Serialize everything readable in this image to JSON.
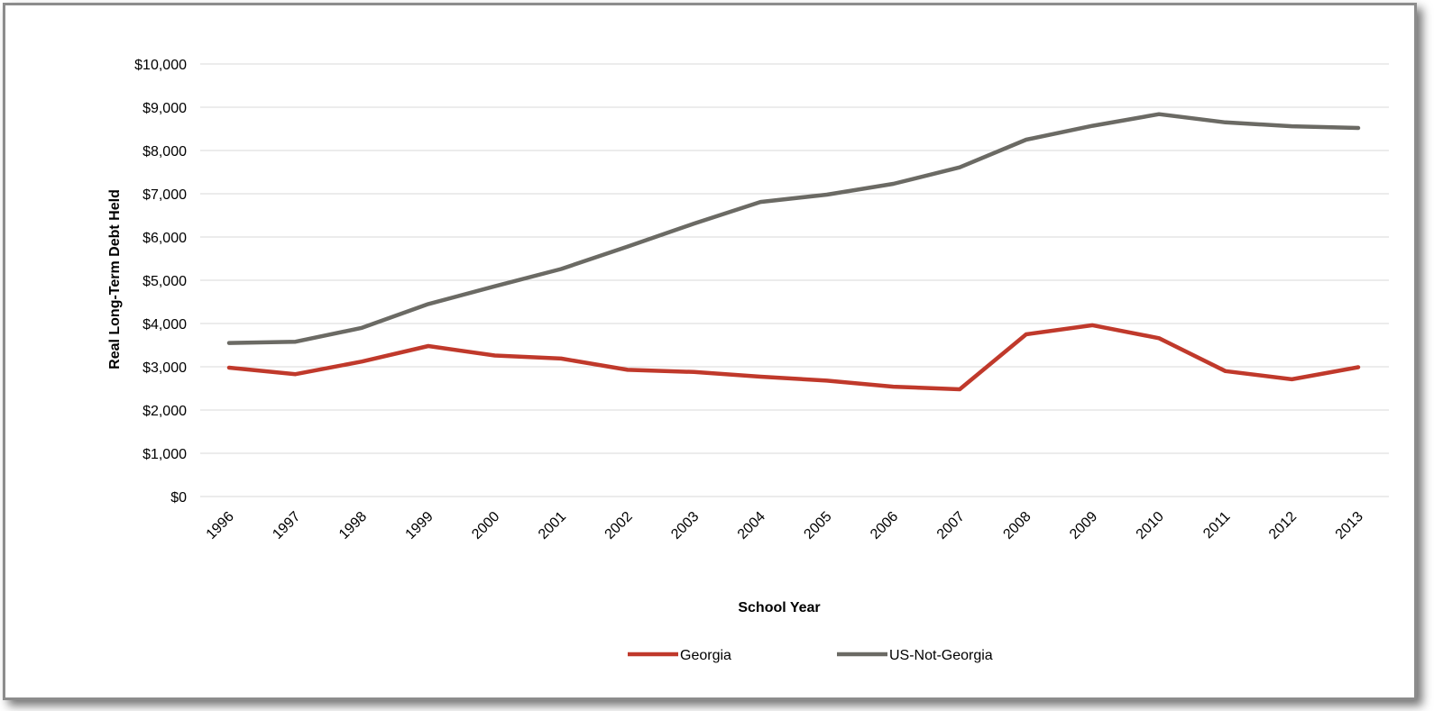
{
  "chart_data": {
    "type": "line",
    "title": "",
    "xlabel": "School Year",
    "ylabel": "Real Long-Term Debt Held",
    "ylim": [
      0,
      10000
    ],
    "yticks": [
      "$0",
      "$1,000",
      "$2,000",
      "$3,000",
      "$4,000",
      "$5,000",
      "$6,000",
      "$7,000",
      "$8,000",
      "$9,000",
      "$10,000"
    ],
    "ytick_values": [
      0,
      1000,
      2000,
      3000,
      4000,
      5000,
      6000,
      7000,
      8000,
      9000,
      10000
    ],
    "grid": true,
    "legend_position": "bottom",
    "x": [
      "1996",
      "1997",
      "1998",
      "1999",
      "2000",
      "2001",
      "2002",
      "2003",
      "2004",
      "2005",
      "2006",
      "2007",
      "2008",
      "2009",
      "2010",
      "2011",
      "2012",
      "2013"
    ],
    "series": [
      {
        "name": "Georgia",
        "color": "#c0392b",
        "values": [
          2980,
          2830,
          3120,
          3480,
          3260,
          3190,
          2930,
          2880,
          2770,
          2680,
          2540,
          2480,
          3750,
          3960,
          3660,
          2900,
          2710,
          2990
        ]
      },
      {
        "name": "US-Not-Georgia",
        "color": "#6b6a64",
        "values": [
          3550,
          3580,
          3900,
          4450,
          4860,
          5260,
          5780,
          6310,
          6810,
          6980,
          7230,
          7610,
          8250,
          8570,
          8840,
          8650,
          8560,
          8520
        ]
      }
    ]
  }
}
